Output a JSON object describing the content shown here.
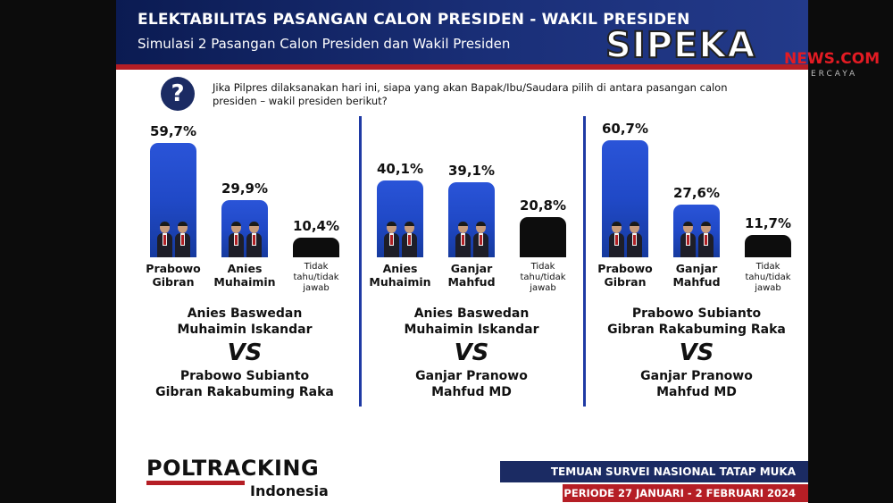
{
  "header": {
    "title": "ELEKTABILITAS PASANGAN CALON PRESIDEN - WAKIL PRESIDEN",
    "subtitle": "Simulasi  2 Pasangan Calon Presiden dan Wakil Presiden"
  },
  "watermark": {
    "main": "SIPEKA",
    "news": "NEWS.COM",
    "tagline": "ERCAYA"
  },
  "question": {
    "icon": "question-mark-icon",
    "text": "Jika Pilpres dilaksanakan hari ini, siapa yang akan Bapak/Ibu/Saudara pilih di antara pasangan calon presiden – wakil presiden berikut?"
  },
  "colors": {
    "bar_blue": "#2049c7",
    "bar_black": "#0d0d0d",
    "header_navy": "#1b2b63",
    "accent_red": "#b51e25"
  },
  "chart_data": [
    {
      "type": "bar",
      "categories": [
        "Prabowo\nGibran",
        "Anies\nMuhaimin",
        "Tidak\ntahu/tidak\njawab"
      ],
      "values": [
        59.7,
        29.9,
        10.4
      ],
      "value_labels": [
        "59,7%",
        "29,9%",
        "10,4%"
      ],
      "bar_colors": [
        "blue",
        "blue",
        "black"
      ],
      "matchup": {
        "top": [
          "Anies Baswedan",
          "Muhaimin Iskandar"
        ],
        "vs": "VS",
        "bottom": [
          "Prabowo Subianto",
          "Gibran Rakabuming Raka"
        ]
      }
    },
    {
      "type": "bar",
      "categories": [
        "Anies\nMuhaimin",
        "Ganjar\nMahfud",
        "Tidak\ntahu/tidak\njawab"
      ],
      "values": [
        40.1,
        39.1,
        20.8
      ],
      "value_labels": [
        "40,1%",
        "39,1%",
        "20,8%"
      ],
      "bar_colors": [
        "blue",
        "blue",
        "black"
      ],
      "matchup": {
        "top": [
          "Anies Baswedan",
          "Muhaimin Iskandar"
        ],
        "vs": "VS",
        "bottom": [
          "Ganjar Pranowo",
          "Mahfud MD"
        ]
      }
    },
    {
      "type": "bar",
      "categories": [
        "Prabowo\nGibran",
        "Ganjar\nMahfud",
        "Tidak\ntahu/tidak\njawab"
      ],
      "values": [
        60.7,
        27.6,
        11.7
      ],
      "value_labels": [
        "60,7%",
        "27,6%",
        "11,7%"
      ],
      "bar_colors": [
        "blue",
        "blue",
        "black"
      ],
      "matchup": {
        "top": [
          "Prabowo Subianto",
          "Gibran Rakabuming Raka"
        ],
        "vs": "VS",
        "bottom": [
          "Ganjar Pranowo",
          "Mahfud MD"
        ]
      }
    }
  ],
  "footer": {
    "logo_main": "POLTRACKING",
    "logo_sub": "Indonesia",
    "survey_title": "TEMUAN SURVEI NASIONAL TATAP MUKA",
    "period": "PERIODE 27 JANUARI - 2 FEBRUARI 2024"
  }
}
